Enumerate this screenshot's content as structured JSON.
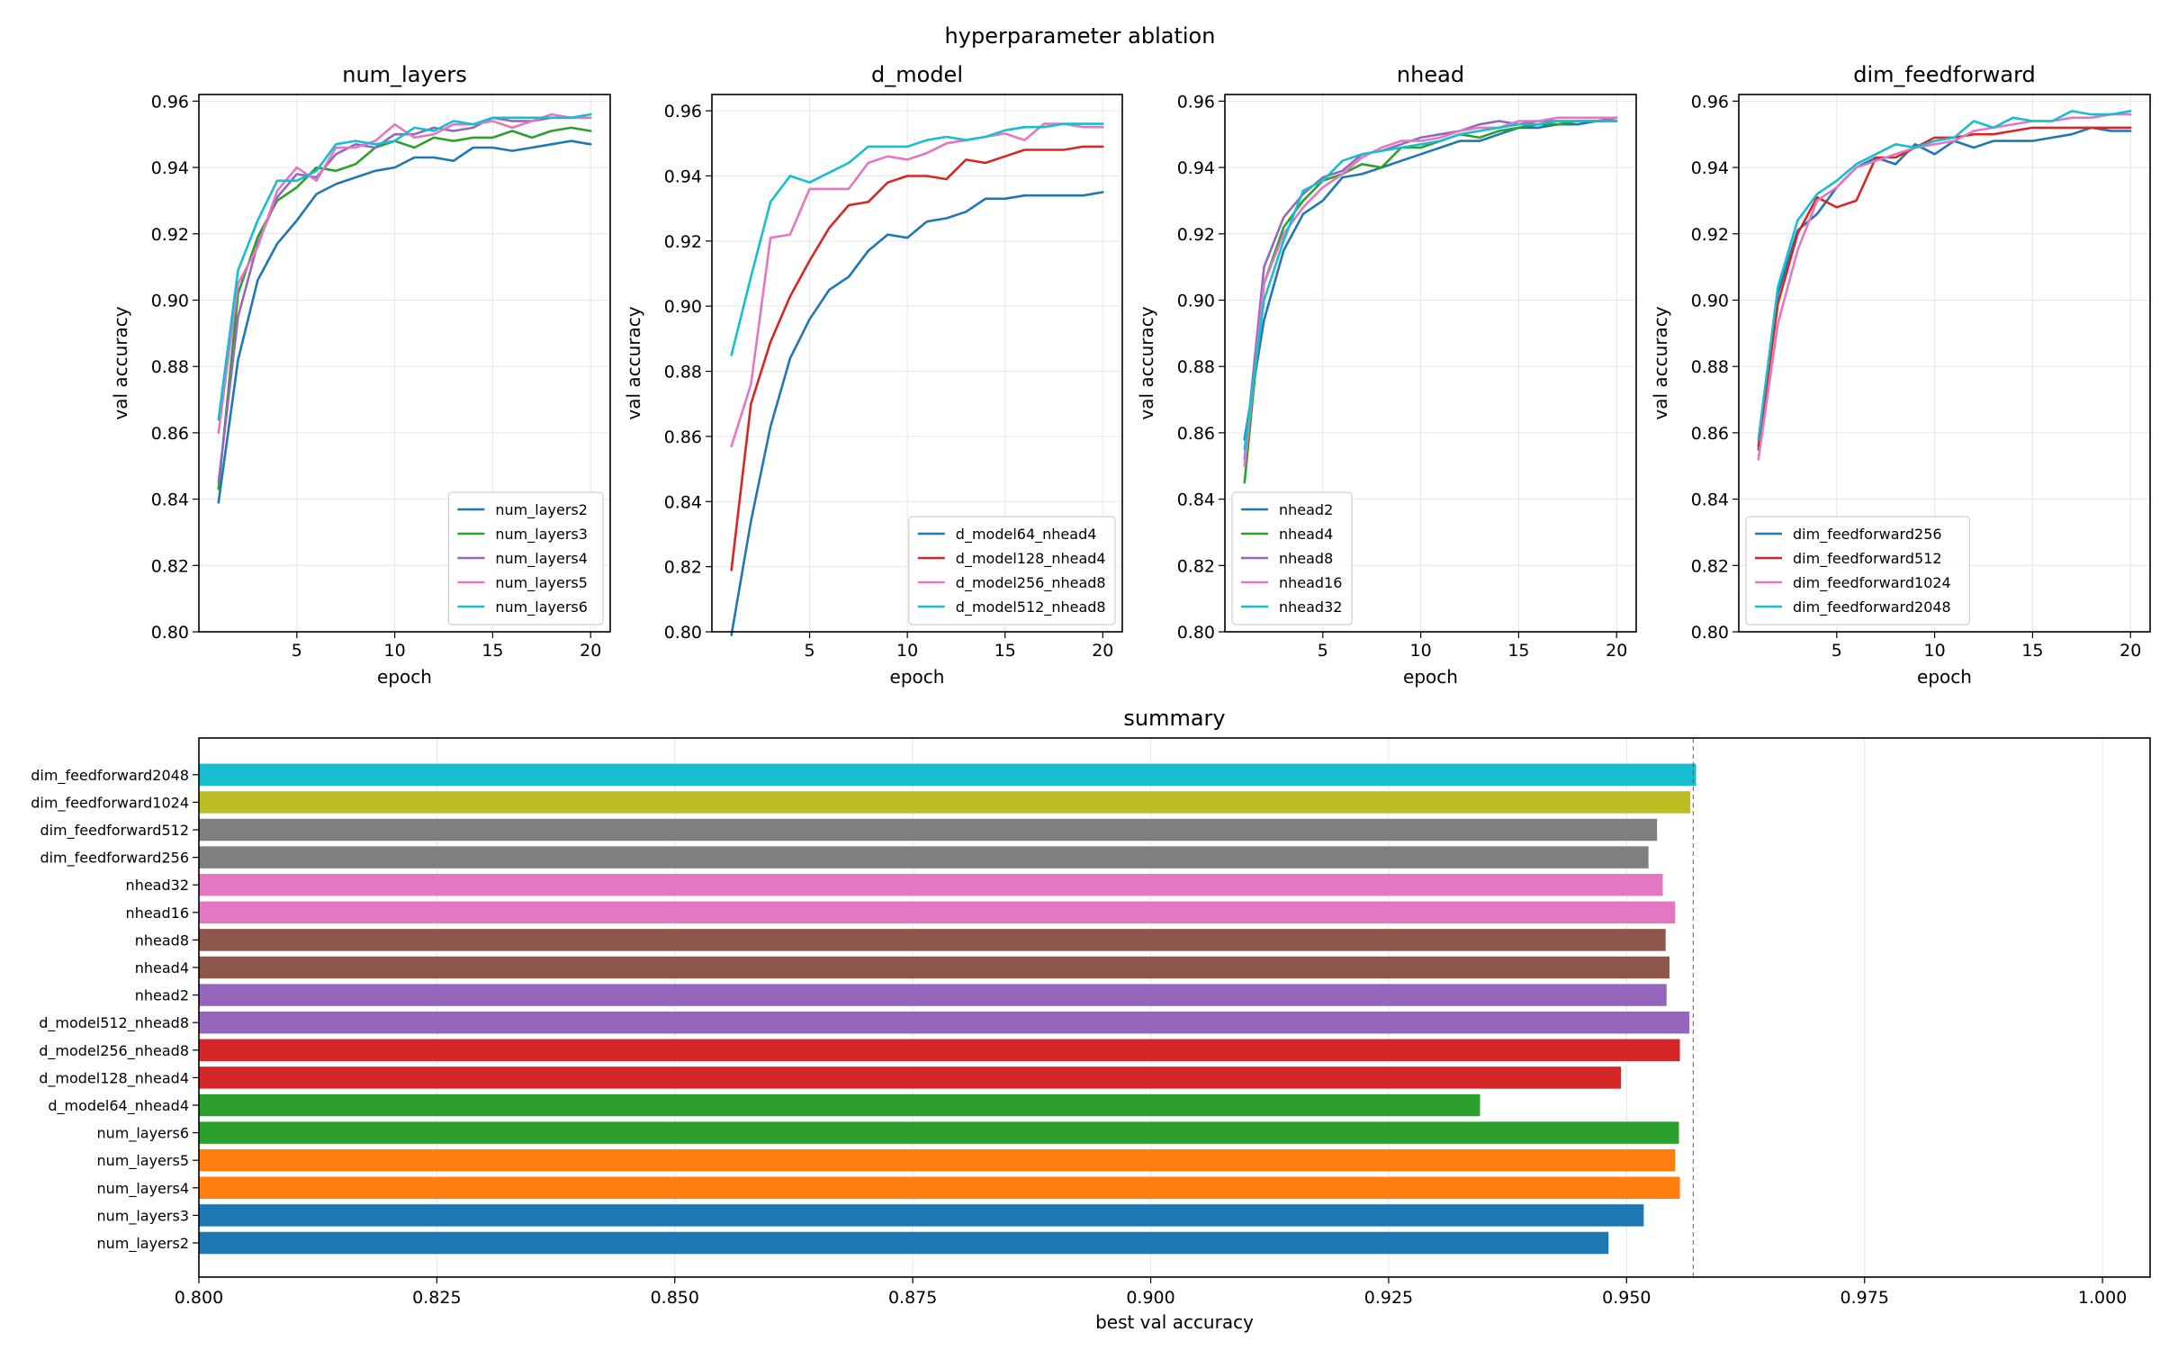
{
  "title": "hyperparameter ablation",
  "chart_data": [
    {
      "type": "line",
      "title": "num_layers",
      "xlabel": "epoch",
      "ylabel": "val accuracy",
      "xlim": [
        0,
        21
      ],
      "ylim": [
        0.8,
        0.962
      ],
      "xticks": [
        5,
        10,
        15,
        20
      ],
      "yticks": [
        0.8,
        0.82,
        0.84,
        0.86,
        0.88,
        0.9,
        0.92,
        0.94,
        0.96
      ],
      "legend_position": "lower-right",
      "x": [
        1,
        2,
        3,
        4,
        5,
        6,
        7,
        8,
        9,
        10,
        11,
        12,
        13,
        14,
        15,
        16,
        17,
        18,
        19,
        20
      ],
      "series": [
        {
          "name": "num_layers2",
          "color": "#1f77b4",
          "values": [
            0.839,
            0.882,
            0.906,
            0.917,
            0.924,
            0.932,
            0.935,
            0.937,
            0.939,
            0.94,
            0.943,
            0.943,
            0.942,
            0.946,
            0.946,
            0.945,
            0.946,
            0.947,
            0.948,
            0.947
          ]
        },
        {
          "name": "num_layers3",
          "color": "#2ca02c",
          "values": [
            0.843,
            0.902,
            0.919,
            0.93,
            0.934,
            0.94,
            0.939,
            0.941,
            0.946,
            0.948,
            0.946,
            0.949,
            0.948,
            0.949,
            0.949,
            0.951,
            0.949,
            0.951,
            0.952,
            0.951
          ]
        },
        {
          "name": "num_layers4",
          "color": "#9467bd",
          "values": [
            0.845,
            0.895,
            0.917,
            0.931,
            0.938,
            0.937,
            0.944,
            0.947,
            0.946,
            0.95,
            0.95,
            0.952,
            0.951,
            0.952,
            0.955,
            0.954,
            0.954,
            0.955,
            0.955,
            0.955
          ]
        },
        {
          "name": "num_layers5",
          "color": "#e377c2",
          "values": [
            0.86,
            0.905,
            0.916,
            0.933,
            0.94,
            0.936,
            0.946,
            0.946,
            0.948,
            0.953,
            0.949,
            0.95,
            0.953,
            0.953,
            0.954,
            0.952,
            0.954,
            0.956,
            0.955,
            0.955
          ]
        },
        {
          "name": "num_layers6",
          "color": "#17becf",
          "values": [
            0.864,
            0.909,
            0.924,
            0.936,
            0.936,
            0.939,
            0.947,
            0.948,
            0.947,
            0.948,
            0.952,
            0.951,
            0.954,
            0.953,
            0.955,
            0.955,
            0.955,
            0.955,
            0.955,
            0.956
          ]
        }
      ]
    },
    {
      "type": "line",
      "title": "d_model",
      "xlabel": "epoch",
      "ylabel": "val accuracy",
      "xlim": [
        0,
        21
      ],
      "ylim": [
        0.8,
        0.965
      ],
      "xticks": [
        5,
        10,
        15,
        20
      ],
      "yticks": [
        0.8,
        0.82,
        0.84,
        0.86,
        0.88,
        0.9,
        0.92,
        0.94,
        0.96
      ],
      "legend_position": "lower-right",
      "x": [
        1,
        2,
        3,
        4,
        5,
        6,
        7,
        8,
        9,
        10,
        11,
        12,
        13,
        14,
        15,
        16,
        17,
        18,
        19,
        20
      ],
      "series": [
        {
          "name": "d_model64_nhead4",
          "color": "#1f77b4",
          "values": [
            0.799,
            0.834,
            0.863,
            0.884,
            0.896,
            0.905,
            0.909,
            0.917,
            0.922,
            0.921,
            0.926,
            0.927,
            0.929,
            0.933,
            0.933,
            0.934,
            0.934,
            0.934,
            0.934,
            0.935
          ]
        },
        {
          "name": "d_model128_nhead4",
          "color": "#d62728",
          "values": [
            0.819,
            0.87,
            0.889,
            0.903,
            0.914,
            0.924,
            0.931,
            0.932,
            0.938,
            0.94,
            0.94,
            0.939,
            0.945,
            0.944,
            0.946,
            0.948,
            0.948,
            0.948,
            0.949,
            0.949
          ]
        },
        {
          "name": "d_model256_nhead8",
          "color": "#e377c2",
          "values": [
            0.857,
            0.876,
            0.921,
            0.922,
            0.936,
            0.936,
            0.936,
            0.944,
            0.946,
            0.945,
            0.947,
            0.95,
            0.951,
            0.952,
            0.953,
            0.951,
            0.956,
            0.956,
            0.955,
            0.955
          ]
        },
        {
          "name": "d_model512_nhead8",
          "color": "#17becf",
          "values": [
            0.885,
            0.909,
            0.932,
            0.94,
            0.938,
            0.941,
            0.944,
            0.949,
            0.949,
            0.949,
            0.951,
            0.952,
            0.951,
            0.952,
            0.954,
            0.955,
            0.955,
            0.956,
            0.956,
            0.956
          ]
        }
      ]
    },
    {
      "type": "line",
      "title": "nhead",
      "xlabel": "epoch",
      "ylabel": "val accuracy",
      "xlim": [
        0,
        21
      ],
      "ylim": [
        0.8,
        0.962
      ],
      "xticks": [
        5,
        10,
        15,
        20
      ],
      "yticks": [
        0.8,
        0.82,
        0.84,
        0.86,
        0.88,
        0.9,
        0.92,
        0.94,
        0.96
      ],
      "legend_position": "lower-left",
      "x": [
        1,
        2,
        3,
        4,
        5,
        6,
        7,
        8,
        9,
        10,
        11,
        12,
        13,
        14,
        15,
        16,
        17,
        18,
        19,
        20
      ],
      "series": [
        {
          "name": "nhead2",
          "color": "#1f77b4",
          "values": [
            0.858,
            0.894,
            0.915,
            0.926,
            0.93,
            0.937,
            0.938,
            0.94,
            0.942,
            0.944,
            0.946,
            0.948,
            0.948,
            0.95,
            0.952,
            0.952,
            0.953,
            0.953,
            0.954,
            0.954
          ]
        },
        {
          "name": "nhead4",
          "color": "#2ca02c",
          "values": [
            0.845,
            0.905,
            0.922,
            0.93,
            0.936,
            0.938,
            0.941,
            0.94,
            0.946,
            0.946,
            0.948,
            0.95,
            0.949,
            0.951,
            0.952,
            0.953,
            0.953,
            0.954,
            0.954,
            0.954
          ]
        },
        {
          "name": "nhead8",
          "color": "#9467bd",
          "values": [
            0.852,
            0.91,
            0.925,
            0.932,
            0.937,
            0.939,
            0.944,
            0.945,
            0.947,
            0.949,
            0.95,
            0.951,
            0.953,
            0.954,
            0.953,
            0.954,
            0.954,
            0.954,
            0.954,
            0.955
          ]
        },
        {
          "name": "nhead16",
          "color": "#e377c2",
          "values": [
            0.85,
            0.905,
            0.92,
            0.928,
            0.934,
            0.938,
            0.943,
            0.946,
            0.948,
            0.948,
            0.949,
            0.951,
            0.952,
            0.952,
            0.954,
            0.954,
            0.955,
            0.955,
            0.955,
            0.955
          ]
        },
        {
          "name": "nhead32",
          "color": "#17becf",
          "values": [
            0.855,
            0.9,
            0.918,
            0.933,
            0.936,
            0.942,
            0.944,
            0.945,
            0.946,
            0.947,
            0.948,
            0.95,
            0.951,
            0.952,
            0.953,
            0.953,
            0.954,
            0.954,
            0.954,
            0.954
          ]
        }
      ]
    },
    {
      "type": "line",
      "title": "dim_feedforward",
      "xlabel": "epoch",
      "ylabel": "val accuracy",
      "xlim": [
        0,
        21
      ],
      "ylim": [
        0.8,
        0.962
      ],
      "xticks": [
        5,
        10,
        15,
        20
      ],
      "yticks": [
        0.8,
        0.82,
        0.84,
        0.86,
        0.88,
        0.9,
        0.92,
        0.94,
        0.96
      ],
      "legend_position": "lower-left",
      "x": [
        1,
        2,
        3,
        4,
        5,
        6,
        7,
        8,
        9,
        10,
        11,
        12,
        13,
        14,
        15,
        16,
        17,
        18,
        19,
        20
      ],
      "series": [
        {
          "name": "dim_feedforward256",
          "color": "#1f77b4",
          "values": [
            0.855,
            0.902,
            0.921,
            0.926,
            0.934,
            0.94,
            0.943,
            0.941,
            0.947,
            0.944,
            0.948,
            0.946,
            0.948,
            0.948,
            0.948,
            0.949,
            0.95,
            0.952,
            0.951,
            0.951
          ]
        },
        {
          "name": "dim_feedforward512",
          "color": "#d62728",
          "values": [
            0.856,
            0.899,
            0.92,
            0.931,
            0.928,
            0.93,
            0.943,
            0.943,
            0.946,
            0.949,
            0.949,
            0.95,
            0.95,
            0.951,
            0.952,
            0.952,
            0.952,
            0.952,
            0.952,
            0.952
          ]
        },
        {
          "name": "dim_feedforward1024",
          "color": "#e377c2",
          "values": [
            0.852,
            0.893,
            0.915,
            0.93,
            0.934,
            0.94,
            0.942,
            0.944,
            0.946,
            0.947,
            0.948,
            0.951,
            0.952,
            0.953,
            0.954,
            0.954,
            0.955,
            0.955,
            0.956,
            0.956
          ]
        },
        {
          "name": "dim_feedforward2048",
          "color": "#17becf",
          "values": [
            0.858,
            0.904,
            0.924,
            0.932,
            0.936,
            0.941,
            0.944,
            0.947,
            0.946,
            0.948,
            0.949,
            0.954,
            0.952,
            0.955,
            0.954,
            0.954,
            0.957,
            0.956,
            0.956,
            0.957
          ]
        }
      ]
    },
    {
      "type": "bar",
      "orientation": "horizontal",
      "title": "summary",
      "xlabel": "best val accuracy",
      "ylabel": "",
      "xlim": [
        0.8,
        1.005
      ],
      "xticks": [
        0.8,
        0.825,
        0.85,
        0.875,
        0.9,
        0.925,
        0.95,
        0.975,
        1.0
      ],
      "xtick_labels": [
        "0.800",
        "0.825",
        "0.850",
        "0.875",
        "0.900",
        "0.925",
        "0.950",
        "0.975",
        "1.000"
      ],
      "reference_line": 0.957,
      "categories": [
        "num_layers2",
        "num_layers3",
        "num_layers4",
        "num_layers5",
        "num_layers6",
        "d_model64_nhead4",
        "d_model128_nhead4",
        "d_model256_nhead8",
        "d_model512_nhead8",
        "nhead2",
        "nhead4",
        "nhead8",
        "nhead16",
        "nhead32",
        "dim_feedforward256",
        "dim_feedforward512",
        "dim_feedforward1024",
        "dim_feedforward2048"
      ],
      "values": [
        0.9481,
        0.9518,
        0.9556,
        0.9551,
        0.9555,
        0.9346,
        0.9494,
        0.9556,
        0.9566,
        0.9542,
        0.9545,
        0.9541,
        0.9551,
        0.9538,
        0.9523,
        0.9532,
        0.9567,
        0.9573
      ],
      "colors": [
        "#1f77b4",
        "#1f77b4",
        "#ff7f0e",
        "#ff7f0e",
        "#2ca02c",
        "#2ca02c",
        "#d62728",
        "#d62728",
        "#9467bd",
        "#9467bd",
        "#8c564b",
        "#8c564b",
        "#e377c2",
        "#e377c2",
        "#7f7f7f",
        "#7f7f7f",
        "#bcbd22",
        "#17becf"
      ]
    }
  ]
}
